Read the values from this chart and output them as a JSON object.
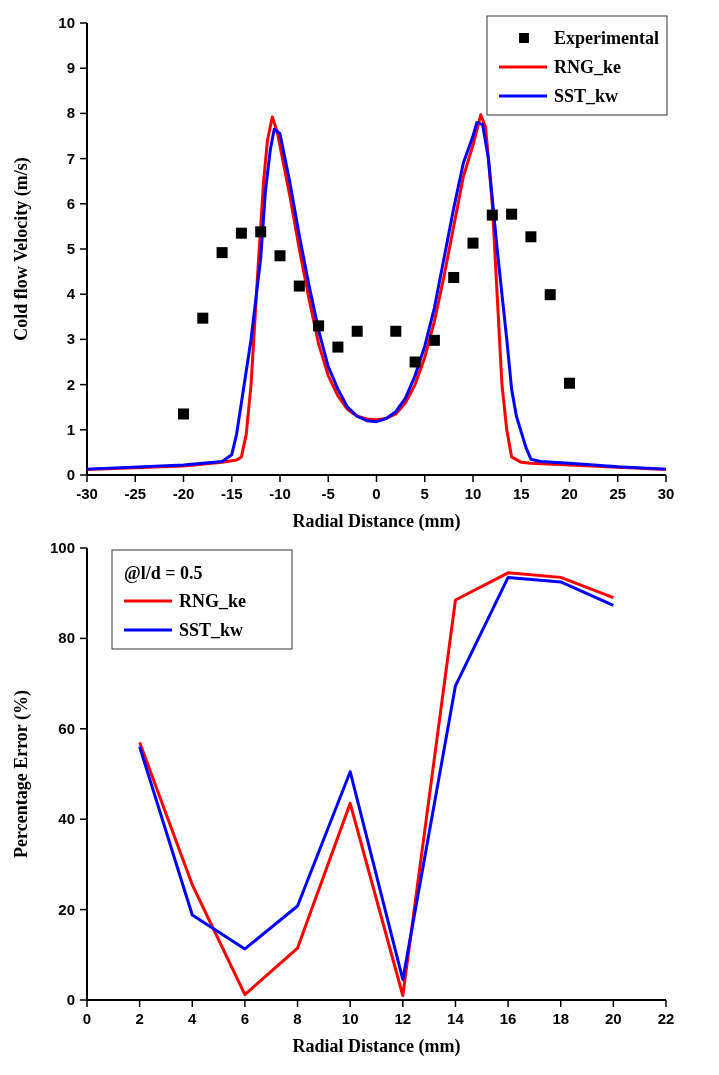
{
  "chart_data": [
    {
      "type": "line",
      "xlabel": "Radial Distance (mm)",
      "ylabel": "Cold flow Velocity (m/s)",
      "xlim": [
        -30,
        30
      ],
      "ylim": [
        0,
        10
      ],
      "xticks": [
        -30,
        -25,
        -20,
        -15,
        -10,
        -5,
        0,
        5,
        10,
        15,
        20,
        25,
        30
      ],
      "yticks": [
        0,
        1,
        2,
        3,
        4,
        5,
        6,
        7,
        8,
        9,
        10
      ],
      "legend": "top right",
      "grid": false,
      "series": [
        {
          "name": "Experimental",
          "type": "scatter",
          "marker": "square",
          "color": "#000000",
          "x": [
            -20,
            -18,
            -16,
            -14,
            -12,
            -10,
            -8,
            -6,
            -4,
            -2,
            2,
            4,
            6,
            8,
            10,
            12,
            14,
            16,
            18,
            20
          ],
          "values": [
            1.35,
            3.47,
            4.92,
            5.35,
            5.38,
            4.85,
            4.18,
            3.3,
            2.83,
            3.18,
            3.18,
            2.5,
            2.98,
            4.37,
            5.13,
            5.75,
            5.77,
            5.27,
            3.99,
            2.03
          ]
        },
        {
          "name": "RNG_ke",
          "color": "#ff0000",
          "x": [
            -30,
            -20,
            -16,
            -14.5,
            -14,
            -13.5,
            -13,
            -12.3,
            -11.7,
            -11.3,
            -10.8,
            -10.3,
            -9,
            -8,
            -7,
            -6,
            -5,
            -4,
            -3,
            -2,
            -1,
            0,
            1,
            2,
            3,
            4,
            5,
            6,
            7,
            8,
            9,
            10,
            10.8,
            11.3,
            12,
            12.5,
            13,
            13.5,
            14,
            15,
            16,
            20,
            25,
            30
          ],
          "values": [
            0.12,
            0.2,
            0.28,
            0.33,
            0.4,
            0.9,
            2.0,
            4.5,
            6.5,
            7.4,
            7.92,
            7.6,
            6.2,
            5.0,
            3.9,
            2.9,
            2.2,
            1.75,
            1.45,
            1.3,
            1.24,
            1.22,
            1.25,
            1.35,
            1.6,
            2.0,
            2.6,
            3.4,
            4.4,
            5.5,
            6.6,
            7.3,
            7.97,
            7.7,
            6.0,
            4.0,
            2.0,
            1.0,
            0.4,
            0.28,
            0.26,
            0.22,
            0.17,
            0.12
          ]
        },
        {
          "name": "SST_kw",
          "color": "#0000ff",
          "x": [
            -30,
            -20,
            -16,
            -15,
            -14.5,
            -14,
            -13,
            -12,
            -11.5,
            -11,
            -10.6,
            -10,
            -9,
            -8,
            -7,
            -6,
            -5,
            -4,
            -3,
            -2,
            -1,
            0,
            1,
            2,
            3,
            4,
            5,
            6,
            7,
            8,
            9,
            10,
            10.4,
            11,
            11.6,
            12.5,
            13.5,
            14,
            14.5,
            15.5,
            16,
            17,
            20,
            25,
            30
          ],
          "values": [
            0.13,
            0.22,
            0.3,
            0.45,
            0.9,
            1.6,
            3.0,
            4.8,
            6.3,
            7.2,
            7.65,
            7.55,
            6.5,
            5.3,
            4.2,
            3.2,
            2.4,
            1.9,
            1.5,
            1.3,
            1.2,
            1.18,
            1.25,
            1.4,
            1.7,
            2.2,
            2.85,
            3.7,
            4.8,
            5.9,
            6.9,
            7.5,
            7.8,
            7.75,
            7.0,
            5.0,
            3.0,
            1.9,
            1.3,
            0.6,
            0.35,
            0.3,
            0.26,
            0.18,
            0.13
          ]
        }
      ]
    },
    {
      "type": "line",
      "xlabel": "Radial Distance (mm)",
      "ylabel": "Percentage Error (%)",
      "legend_title": "@l/d = 0.5",
      "xlim": [
        0,
        22
      ],
      "ylim": [
        0,
        100
      ],
      "xticks": [
        0,
        2,
        4,
        6,
        8,
        10,
        12,
        14,
        16,
        18,
        20,
        22
      ],
      "yticks": [
        0,
        20,
        40,
        60,
        80,
        100
      ],
      "legend": "top left",
      "grid": false,
      "x": [
        2,
        4,
        6,
        8,
        10,
        12,
        14,
        16,
        18,
        20
      ],
      "series": [
        {
          "name": "RNG_ke",
          "color": "#ff0000",
          "values": [
            57,
            25.5,
            1.2,
            11.5,
            43.5,
            1,
            88.5,
            94.5,
            93.5,
            89
          ]
        },
        {
          "name": "SST_kw",
          "color": "#0000ff",
          "values": [
            56,
            18.8,
            11.3,
            20.8,
            50.5,
            4.5,
            69.5,
            93.5,
            92.5,
            87.3
          ]
        }
      ]
    }
  ]
}
